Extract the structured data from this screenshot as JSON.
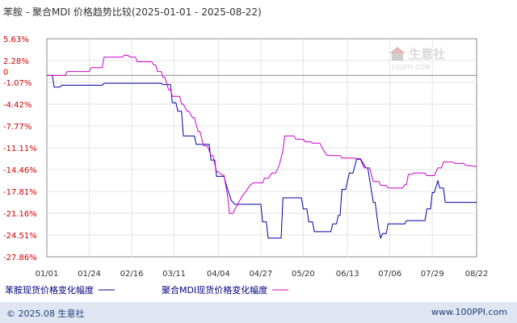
{
  "chart_data": {
    "type": "line",
    "title": "苯胺 - 聚合MDI 价格趋势比较(2025-01-01 - 2025-08-22)",
    "y_ticks": [
      "5.63%",
      "2.28%",
      "-1.07%",
      "-4.42%",
      "-7.77%",
      "-11.11%",
      "-14.46%",
      "-17.81%",
      "-21.16%",
      "-24.51%",
      "-27.86%"
    ],
    "zero_label": "0",
    "ylim": [
      -27.86,
      5.63
    ],
    "x_ticks": [
      "01/01",
      "01/24",
      "02/16",
      "03/11",
      "04/04",
      "04/27",
      "05/20",
      "06/13",
      "07/06",
      "07/29",
      "08/22"
    ],
    "x_tick_days": [
      0,
      23,
      46,
      69,
      93,
      116,
      139,
      163,
      186,
      209,
      233
    ],
    "xlim_days": [
      0,
      233
    ],
    "grid": true,
    "legend_position": "bottom",
    "series": [
      {
        "name": "苯胺现货价格变化幅度",
        "color": "#0000aa",
        "points": [
          [
            0,
            0
          ],
          [
            3,
            0
          ],
          [
            4,
            -1.8
          ],
          [
            7,
            -1.8
          ],
          [
            8,
            -1.5
          ],
          [
            30,
            -1.5
          ],
          [
            31,
            -1.2
          ],
          [
            58,
            -1.2
          ],
          [
            62,
            -1.2
          ],
          [
            63,
            -1.4
          ],
          [
            67,
            -1.4
          ],
          [
            68,
            -4.2
          ],
          [
            70,
            -4.2
          ],
          [
            71,
            -5.5
          ],
          [
            73,
            -5.5
          ],
          [
            74,
            -9.3
          ],
          [
            80,
            -9.3
          ],
          [
            81,
            -10.6
          ],
          [
            88,
            -10.6
          ],
          [
            89,
            -13.0
          ],
          [
            91,
            -13.0
          ],
          [
            92,
            -15.5
          ],
          [
            96,
            -15.5
          ],
          [
            98,
            -17.5
          ],
          [
            100,
            -19.2
          ],
          [
            102,
            -19.8
          ],
          [
            116,
            -19.8
          ],
          [
            117,
            -22.5
          ],
          [
            119,
            -22.5
          ],
          [
            120,
            -25.0
          ],
          [
            127,
            -25.0
          ],
          [
            128,
            -18.8
          ],
          [
            138,
            -18.8
          ],
          [
            139,
            -20.5
          ],
          [
            141,
            -20.5
          ],
          [
            142,
            -22.5
          ],
          [
            144,
            -22.5
          ],
          [
            145,
            -24.0
          ],
          [
            154,
            -24.0
          ],
          [
            155,
            -22.8
          ],
          [
            157,
            -22.8
          ],
          [
            158,
            -21.5
          ],
          [
            159,
            -21.5
          ],
          [
            160,
            -17.5
          ],
          [
            162,
            -17.5
          ],
          [
            164,
            -15.0
          ],
          [
            166,
            -15.0
          ],
          [
            168,
            -12.8
          ],
          [
            170,
            -12.8
          ],
          [
            173,
            -14.2
          ],
          [
            174,
            -14.2
          ],
          [
            177,
            -19.5
          ],
          [
            178,
            -19.5
          ],
          [
            180,
            -23.8
          ],
          [
            181,
            -25.0
          ],
          [
            182,
            -24.3
          ],
          [
            184,
            -24.3
          ],
          [
            185,
            -22.8
          ],
          [
            194,
            -22.8
          ],
          [
            195,
            -22.3
          ],
          [
            205,
            -22.3
          ],
          [
            206,
            -20.5
          ],
          [
            208,
            -20.5
          ],
          [
            209,
            -18.0
          ],
          [
            210,
            -18.0
          ],
          [
            212,
            -16.2
          ],
          [
            213,
            -17.3
          ],
          [
            215,
            -17.3
          ],
          [
            216,
            -19.5
          ],
          [
            233,
            -19.5
          ]
        ]
      },
      {
        "name": "聚合MDI现货价格变化幅度",
        "color": "#cc00cc",
        "points": [
          [
            0,
            0
          ],
          [
            10,
            0
          ],
          [
            11,
            0.6
          ],
          [
            23,
            0.6
          ],
          [
            24,
            1.2
          ],
          [
            30,
            1.2
          ],
          [
            31,
            2.8
          ],
          [
            41,
            2.8
          ],
          [
            42,
            3.1
          ],
          [
            44,
            3.1
          ],
          [
            45,
            2.8
          ],
          [
            48,
            2.8
          ],
          [
            49,
            2.1
          ],
          [
            57,
            2.1
          ],
          [
            58,
            1.6
          ],
          [
            59,
            1.6
          ],
          [
            60,
            0.6
          ],
          [
            62,
            0.6
          ],
          [
            63,
            -0.3
          ],
          [
            64,
            -0.3
          ],
          [
            66,
            -2.2
          ],
          [
            67,
            -2.2
          ],
          [
            68,
            -3.2
          ],
          [
            72,
            -3.2
          ],
          [
            73,
            -4.4
          ],
          [
            74,
            -4.4
          ],
          [
            76,
            -5.5
          ],
          [
            77,
            -5.5
          ],
          [
            79,
            -6.5
          ],
          [
            80,
            -6.5
          ],
          [
            82,
            -8.6
          ],
          [
            83,
            -8.6
          ],
          [
            85,
            -10.8
          ],
          [
            87,
            -10.8
          ],
          [
            89,
            -12.3
          ],
          [
            90,
            -12.3
          ],
          [
            92,
            -14.8
          ],
          [
            93,
            -14.8
          ],
          [
            95,
            -15.3
          ],
          [
            96,
            -15.3
          ],
          [
            98,
            -18.5
          ],
          [
            99,
            -21.2
          ],
          [
            101,
            -21.2
          ],
          [
            102,
            -20.5
          ],
          [
            104,
            -19.5
          ],
          [
            106,
            -18.5
          ],
          [
            108,
            -17.8
          ],
          [
            110,
            -16.9
          ],
          [
            112,
            -16.5
          ],
          [
            117,
            -16.5
          ],
          [
            118,
            -15.8
          ],
          [
            120,
            -15.8
          ],
          [
            122,
            -15.0
          ],
          [
            124,
            -15.0
          ],
          [
            126,
            -13.8
          ],
          [
            128,
            -11.5
          ],
          [
            129,
            -9.3
          ],
          [
            134,
            -9.3
          ],
          [
            135,
            -9.8
          ],
          [
            139,
            -9.8
          ],
          [
            140,
            -10.2
          ],
          [
            143,
            -10.2
          ],
          [
            144,
            -10.4
          ],
          [
            148,
            -10.4
          ],
          [
            150,
            -11.5
          ],
          [
            152,
            -12.3
          ],
          [
            159,
            -12.3
          ],
          [
            160,
            -12.7
          ],
          [
            167,
            -12.7
          ],
          [
            168,
            -12.9
          ],
          [
            170,
            -12.9
          ],
          [
            172,
            -14.2
          ],
          [
            175,
            -14.2
          ],
          [
            177,
            -16.3
          ],
          [
            180,
            -16.3
          ],
          [
            181,
            -16.9
          ],
          [
            184,
            -16.9
          ],
          [
            185,
            -17.3
          ],
          [
            193,
            -17.3
          ],
          [
            194,
            -16.8
          ],
          [
            195,
            -16.8
          ],
          [
            196,
            -15.2
          ],
          [
            198,
            -15.2
          ],
          [
            199,
            -15.0
          ],
          [
            205,
            -15.0
          ],
          [
            206,
            -15.4
          ],
          [
            210,
            -15.4
          ],
          [
            212,
            -14.2
          ],
          [
            214,
            -14.2
          ],
          [
            215,
            -13.3
          ],
          [
            220,
            -13.3
          ],
          [
            221,
            -13.5
          ],
          [
            226,
            -13.5
          ],
          [
            227,
            -13.8
          ],
          [
            233,
            -14.0
          ]
        ]
      }
    ],
    "watermark_cn": "生意社",
    "watermark_en": "100PPI.COM"
  },
  "footer": {
    "copyright": "© 2025.08 生意社",
    "site": "www.100PPI.com"
  }
}
